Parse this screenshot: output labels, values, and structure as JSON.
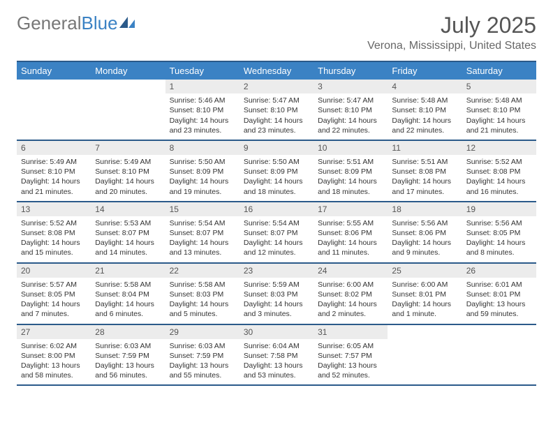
{
  "logo": {
    "text1": "General",
    "text2": "Blue"
  },
  "title": "July 2025",
  "location": "Verona, Mississippi, United States",
  "colors": {
    "header_bg": "#3b82c4",
    "border": "#2b5a8a",
    "daynum_bg": "#ececec",
    "text": "#333333"
  },
  "weekdays": [
    "Sunday",
    "Monday",
    "Tuesday",
    "Wednesday",
    "Thursday",
    "Friday",
    "Saturday"
  ],
  "weeks": [
    [
      null,
      null,
      {
        "n": "1",
        "sr": "5:46 AM",
        "ss": "8:10 PM",
        "dl": "14 hours and 23 minutes."
      },
      {
        "n": "2",
        "sr": "5:47 AM",
        "ss": "8:10 PM",
        "dl": "14 hours and 23 minutes."
      },
      {
        "n": "3",
        "sr": "5:47 AM",
        "ss": "8:10 PM",
        "dl": "14 hours and 22 minutes."
      },
      {
        "n": "4",
        "sr": "5:48 AM",
        "ss": "8:10 PM",
        "dl": "14 hours and 22 minutes."
      },
      {
        "n": "5",
        "sr": "5:48 AM",
        "ss": "8:10 PM",
        "dl": "14 hours and 21 minutes."
      }
    ],
    [
      {
        "n": "6",
        "sr": "5:49 AM",
        "ss": "8:10 PM",
        "dl": "14 hours and 21 minutes."
      },
      {
        "n": "7",
        "sr": "5:49 AM",
        "ss": "8:10 PM",
        "dl": "14 hours and 20 minutes."
      },
      {
        "n": "8",
        "sr": "5:50 AM",
        "ss": "8:09 PM",
        "dl": "14 hours and 19 minutes."
      },
      {
        "n": "9",
        "sr": "5:50 AM",
        "ss": "8:09 PM",
        "dl": "14 hours and 18 minutes."
      },
      {
        "n": "10",
        "sr": "5:51 AM",
        "ss": "8:09 PM",
        "dl": "14 hours and 18 minutes."
      },
      {
        "n": "11",
        "sr": "5:51 AM",
        "ss": "8:08 PM",
        "dl": "14 hours and 17 minutes."
      },
      {
        "n": "12",
        "sr": "5:52 AM",
        "ss": "8:08 PM",
        "dl": "14 hours and 16 minutes."
      }
    ],
    [
      {
        "n": "13",
        "sr": "5:52 AM",
        "ss": "8:08 PM",
        "dl": "14 hours and 15 minutes."
      },
      {
        "n": "14",
        "sr": "5:53 AM",
        "ss": "8:07 PM",
        "dl": "14 hours and 14 minutes."
      },
      {
        "n": "15",
        "sr": "5:54 AM",
        "ss": "8:07 PM",
        "dl": "14 hours and 13 minutes."
      },
      {
        "n": "16",
        "sr": "5:54 AM",
        "ss": "8:07 PM",
        "dl": "14 hours and 12 minutes."
      },
      {
        "n": "17",
        "sr": "5:55 AM",
        "ss": "8:06 PM",
        "dl": "14 hours and 11 minutes."
      },
      {
        "n": "18",
        "sr": "5:56 AM",
        "ss": "8:06 PM",
        "dl": "14 hours and 9 minutes."
      },
      {
        "n": "19",
        "sr": "5:56 AM",
        "ss": "8:05 PM",
        "dl": "14 hours and 8 minutes."
      }
    ],
    [
      {
        "n": "20",
        "sr": "5:57 AM",
        "ss": "8:05 PM",
        "dl": "14 hours and 7 minutes."
      },
      {
        "n": "21",
        "sr": "5:58 AM",
        "ss": "8:04 PM",
        "dl": "14 hours and 6 minutes."
      },
      {
        "n": "22",
        "sr": "5:58 AM",
        "ss": "8:03 PM",
        "dl": "14 hours and 5 minutes."
      },
      {
        "n": "23",
        "sr": "5:59 AM",
        "ss": "8:03 PM",
        "dl": "14 hours and 3 minutes."
      },
      {
        "n": "24",
        "sr": "6:00 AM",
        "ss": "8:02 PM",
        "dl": "14 hours and 2 minutes."
      },
      {
        "n": "25",
        "sr": "6:00 AM",
        "ss": "8:01 PM",
        "dl": "14 hours and 1 minute."
      },
      {
        "n": "26",
        "sr": "6:01 AM",
        "ss": "8:01 PM",
        "dl": "13 hours and 59 minutes."
      }
    ],
    [
      {
        "n": "27",
        "sr": "6:02 AM",
        "ss": "8:00 PM",
        "dl": "13 hours and 58 minutes."
      },
      {
        "n": "28",
        "sr": "6:03 AM",
        "ss": "7:59 PM",
        "dl": "13 hours and 56 minutes."
      },
      {
        "n": "29",
        "sr": "6:03 AM",
        "ss": "7:59 PM",
        "dl": "13 hours and 55 minutes."
      },
      {
        "n": "30",
        "sr": "6:04 AM",
        "ss": "7:58 PM",
        "dl": "13 hours and 53 minutes."
      },
      {
        "n": "31",
        "sr": "6:05 AM",
        "ss": "7:57 PM",
        "dl": "13 hours and 52 minutes."
      },
      null,
      null
    ]
  ],
  "labels": {
    "sunrise": "Sunrise: ",
    "sunset": "Sunset: ",
    "daylight": "Daylight: "
  }
}
